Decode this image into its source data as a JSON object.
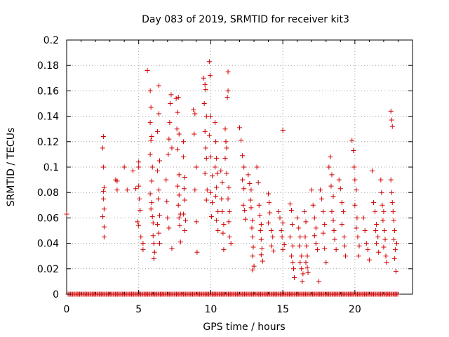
{
  "chart_data": {
    "type": "scatter",
    "title": "Day 083 of 2019, SRMTID for receiver kit3",
    "xlabel": "GPS time / hours",
    "ylabel": "SRMTID / TECUs",
    "xlim": [
      0,
      24
    ],
    "ylim": [
      0,
      0.2
    ],
    "x_ticks": [
      0,
      5,
      10,
      15,
      20
    ],
    "y_ticks": [
      0,
      0.02,
      0.04,
      0.06,
      0.08,
      0.1,
      0.12,
      0.14,
      0.16,
      0.18,
      0.2
    ],
    "x_tick_labels": [
      "0",
      "5",
      "10",
      "15",
      "20"
    ],
    "y_tick_labels": [
      "0",
      "0.02",
      "0.04",
      "0.06",
      "0.08",
      "0.1",
      "0.12",
      "0.14",
      "0.16",
      "0.18",
      "0.2"
    ],
    "grid": true,
    "marker": "+",
    "color": "#d00000",
    "series": [
      {
        "name": "SRMTID",
        "points": [
          [
            0.0,
            0.063
          ],
          [
            2.55,
            0.124
          ],
          [
            2.5,
            0.115
          ],
          [
            2.55,
            0.1
          ],
          [
            2.6,
            0.084
          ],
          [
            2.55,
            0.081
          ],
          [
            2.55,
            0.075
          ],
          [
            2.6,
            0.067
          ],
          [
            2.5,
            0.061
          ],
          [
            2.6,
            0.053
          ],
          [
            2.6,
            0.045
          ],
          [
            3.4,
            0.09
          ],
          [
            3.5,
            0.082
          ],
          [
            3.5,
            0.089
          ],
          [
            4.0,
            0.1
          ],
          [
            4.2,
            0.082
          ],
          [
            4.6,
            0.097
          ],
          [
            4.8,
            0.083
          ],
          [
            5.0,
            0.1
          ],
          [
            5.0,
            0.104
          ],
          [
            5.0,
            0.085
          ],
          [
            4.9,
            0.057
          ],
          [
            5.05,
            0.075
          ],
          [
            5.1,
            0.066
          ],
          [
            5.0,
            0.054
          ],
          [
            5.15,
            0.045
          ],
          [
            5.3,
            0.04
          ],
          [
            5.3,
            0.035
          ],
          [
            5.6,
            0.176
          ],
          [
            5.8,
            0.16
          ],
          [
            5.85,
            0.147
          ],
          [
            5.8,
            0.135
          ],
          [
            5.9,
            0.124
          ],
          [
            5.85,
            0.121
          ],
          [
            5.8,
            0.11
          ],
          [
            5.95,
            0.1
          ],
          [
            5.9,
            0.089
          ],
          [
            5.8,
            0.079
          ],
          [
            5.9,
            0.072
          ],
          [
            5.85,
            0.067
          ],
          [
            5.95,
            0.061
          ],
          [
            6.0,
            0.056
          ],
          [
            6.0,
            0.046
          ],
          [
            6.05,
            0.04
          ],
          [
            6.1,
            0.033
          ],
          [
            6.05,
            0.028
          ],
          [
            6.3,
            0.128
          ],
          [
            6.4,
            0.142
          ],
          [
            6.4,
            0.164
          ],
          [
            6.45,
            0.105
          ],
          [
            6.3,
            0.097
          ],
          [
            6.4,
            0.082
          ],
          [
            6.35,
            0.075
          ],
          [
            6.45,
            0.062
          ],
          [
            6.3,
            0.055
          ],
          [
            6.4,
            0.048
          ],
          [
            6.45,
            0.04
          ],
          [
            6.9,
            0.09
          ],
          [
            6.95,
            0.073
          ],
          [
            7.0,
            0.06
          ],
          [
            7.05,
            0.11
          ],
          [
            7.1,
            0.122
          ],
          [
            7.2,
            0.15
          ],
          [
            7.25,
            0.157
          ],
          [
            7.15,
            0.135
          ],
          [
            7.3,
            0.115
          ],
          [
            7.1,
            0.052
          ],
          [
            7.3,
            0.036
          ],
          [
            7.6,
            0.154
          ],
          [
            7.7,
            0.143
          ],
          [
            7.75,
            0.155
          ],
          [
            7.65,
            0.13
          ],
          [
            7.8,
            0.126
          ],
          [
            7.7,
            0.114
          ],
          [
            7.8,
            0.094
          ],
          [
            7.7,
            0.085
          ],
          [
            7.8,
            0.078
          ],
          [
            7.75,
            0.07
          ],
          [
            7.9,
            0.063
          ],
          [
            7.8,
            0.06
          ],
          [
            7.85,
            0.054
          ],
          [
            7.9,
            0.041
          ],
          [
            8.1,
            0.12
          ],
          [
            8.1,
            0.108
          ],
          [
            8.2,
            0.092
          ],
          [
            8.15,
            0.083
          ],
          [
            8.2,
            0.074
          ],
          [
            8.1,
            0.063
          ],
          [
            8.25,
            0.058
          ],
          [
            8.2,
            0.05
          ],
          [
            8.8,
            0.145
          ],
          [
            8.9,
            0.142
          ],
          [
            9.0,
            0.1
          ],
          [
            8.85,
            0.126
          ],
          [
            8.9,
            0.082
          ],
          [
            9.0,
            0.057
          ],
          [
            9.05,
            0.033
          ],
          [
            9.5,
            0.17
          ],
          [
            9.6,
            0.165
          ],
          [
            9.65,
            0.161
          ],
          [
            9.55,
            0.15
          ],
          [
            9.7,
            0.14
          ],
          [
            9.6,
            0.128
          ],
          [
            9.65,
            0.115
          ],
          [
            9.7,
            0.107
          ],
          [
            9.6,
            0.095
          ],
          [
            9.75,
            0.082
          ],
          [
            9.7,
            0.074
          ],
          [
            9.9,
            0.183
          ],
          [
            9.95,
            0.172
          ],
          [
            10.0,
            0.14
          ],
          [
            9.9,
            0.125
          ],
          [
            10.0,
            0.108
          ],
          [
            10.1,
            0.093
          ],
          [
            10.0,
            0.08
          ],
          [
            10.1,
            0.072
          ],
          [
            10.05,
            0.061
          ],
          [
            10.3,
            0.135
          ],
          [
            10.35,
            0.12
          ],
          [
            10.4,
            0.107
          ],
          [
            10.3,
            0.1
          ],
          [
            10.45,
            0.095
          ],
          [
            10.4,
            0.084
          ],
          [
            10.35,
            0.077
          ],
          [
            10.5,
            0.065
          ],
          [
            10.4,
            0.058
          ],
          [
            10.5,
            0.05
          ],
          [
            10.7,
            0.097
          ],
          [
            10.8,
            0.088
          ],
          [
            10.75,
            0.075
          ],
          [
            10.8,
            0.065
          ],
          [
            10.9,
            0.055
          ],
          [
            10.85,
            0.048
          ],
          [
            10.9,
            0.035
          ],
          [
            11.0,
            0.13
          ],
          [
            11.05,
            0.12
          ],
          [
            11.1,
            0.115
          ],
          [
            11.0,
            0.107
          ],
          [
            11.1,
            0.095
          ],
          [
            11.2,
            0.175
          ],
          [
            11.2,
            0.16
          ],
          [
            11.15,
            0.155
          ],
          [
            11.25,
            0.084
          ],
          [
            11.2,
            0.075
          ],
          [
            11.3,
            0.065
          ],
          [
            11.25,
            0.057
          ],
          [
            11.3,
            0.045
          ],
          [
            11.4,
            0.04
          ],
          [
            12.0,
            0.131
          ],
          [
            12.1,
            0.121
          ],
          [
            12.2,
            0.109
          ],
          [
            12.3,
            0.1
          ],
          [
            12.2,
            0.09
          ],
          [
            12.3,
            0.083
          ],
          [
            12.25,
            0.07
          ],
          [
            12.35,
            0.066
          ],
          [
            12.4,
            0.059
          ],
          [
            12.6,
            0.094
          ],
          [
            12.7,
            0.087
          ],
          [
            12.8,
            0.082
          ],
          [
            12.75,
            0.074
          ],
          [
            12.8,
            0.068
          ],
          [
            12.9,
            0.058
          ],
          [
            12.85,
            0.052
          ],
          [
            12.9,
            0.045
          ],
          [
            12.95,
            0.037
          ],
          [
            12.9,
            0.03
          ],
          [
            13.0,
            0.022
          ],
          [
            12.9,
            0.019
          ],
          [
            13.2,
            0.1
          ],
          [
            13.3,
            0.088
          ],
          [
            13.35,
            0.07
          ],
          [
            13.4,
            0.062
          ],
          [
            13.5,
            0.055
          ],
          [
            13.45,
            0.05
          ],
          [
            13.5,
            0.043
          ],
          [
            13.55,
            0.036
          ],
          [
            13.5,
            0.031
          ],
          [
            13.6,
            0.026
          ],
          [
            14.0,
            0.079
          ],
          [
            14.05,
            0.072
          ],
          [
            14.1,
            0.064
          ],
          [
            14.0,
            0.056
          ],
          [
            14.2,
            0.05
          ],
          [
            14.3,
            0.045
          ],
          [
            14.2,
            0.038
          ],
          [
            14.35,
            0.034
          ],
          [
            14.7,
            0.065
          ],
          [
            14.8,
            0.06
          ],
          [
            14.9,
            0.05
          ],
          [
            14.95,
            0.045
          ],
          [
            15.0,
            0.129
          ],
          [
            15.0,
            0.056
          ],
          [
            15.1,
            0.039
          ],
          [
            15.0,
            0.035
          ],
          [
            15.5,
            0.071
          ],
          [
            15.6,
            0.066
          ],
          [
            15.65,
            0.055
          ],
          [
            15.5,
            0.045
          ],
          [
            15.7,
            0.038
          ],
          [
            15.6,
            0.03
          ],
          [
            15.7,
            0.025
          ],
          [
            15.75,
            0.02
          ],
          [
            15.8,
            0.013
          ],
          [
            16.0,
            0.06
          ],
          [
            16.1,
            0.052
          ],
          [
            16.2,
            0.045
          ],
          [
            16.15,
            0.038
          ],
          [
            16.3,
            0.03
          ],
          [
            16.2,
            0.025
          ],
          [
            16.3,
            0.02
          ],
          [
            16.4,
            0.016
          ],
          [
            16.35,
            0.01
          ],
          [
            16.5,
            0.065
          ],
          [
            16.6,
            0.057
          ],
          [
            16.55,
            0.045
          ],
          [
            16.65,
            0.038
          ],
          [
            16.7,
            0.03
          ],
          [
            16.6,
            0.025
          ],
          [
            16.7,
            0.021
          ],
          [
            16.75,
            0.017
          ],
          [
            17.0,
            0.082
          ],
          [
            17.1,
            0.07
          ],
          [
            17.2,
            0.06
          ],
          [
            17.3,
            0.052
          ],
          [
            17.2,
            0.046
          ],
          [
            17.3,
            0.04
          ],
          [
            17.4,
            0.035
          ],
          [
            17.5,
            0.01
          ],
          [
            17.6,
            0.082
          ],
          [
            17.7,
            0.075
          ],
          [
            17.8,
            0.065
          ],
          [
            17.9,
            0.055
          ],
          [
            17.8,
            0.048
          ],
          [
            17.9,
            0.036
          ],
          [
            18.0,
            0.025
          ],
          [
            18.2,
            0.1
          ],
          [
            18.3,
            0.108
          ],
          [
            18.4,
            0.094
          ],
          [
            18.35,
            0.085
          ],
          [
            18.5,
            0.077
          ],
          [
            18.4,
            0.065
          ],
          [
            18.5,
            0.058
          ],
          [
            18.55,
            0.05
          ],
          [
            18.6,
            0.043
          ],
          [
            18.7,
            0.035
          ],
          [
            18.9,
            0.09
          ],
          [
            19.0,
            0.083
          ],
          [
            19.1,
            0.072
          ],
          [
            19.2,
            0.065
          ],
          [
            19.1,
            0.055
          ],
          [
            19.25,
            0.045
          ],
          [
            19.3,
            0.038
          ],
          [
            19.35,
            0.03
          ],
          [
            19.8,
            0.121
          ],
          [
            19.9,
            0.113
          ],
          [
            19.95,
            0.1
          ],
          [
            20.0,
            0.09
          ],
          [
            20.1,
            0.082
          ],
          [
            20.0,
            0.07
          ],
          [
            20.15,
            0.06
          ],
          [
            20.1,
            0.052
          ],
          [
            20.2,
            0.045
          ],
          [
            20.3,
            0.038
          ],
          [
            20.25,
            0.03
          ],
          [
            20.6,
            0.06
          ],
          [
            20.7,
            0.05
          ],
          [
            20.8,
            0.04
          ],
          [
            20.9,
            0.035
          ],
          [
            21.0,
            0.027
          ],
          [
            21.2,
            0.097
          ],
          [
            21.3,
            0.072
          ],
          [
            21.4,
            0.065
          ],
          [
            21.5,
            0.055
          ],
          [
            21.45,
            0.05
          ],
          [
            21.6,
            0.045
          ],
          [
            21.5,
            0.04
          ],
          [
            21.65,
            0.033
          ],
          [
            21.8,
            0.09
          ],
          [
            21.85,
            0.08
          ],
          [
            21.9,
            0.07
          ],
          [
            22.0,
            0.065
          ],
          [
            21.95,
            0.058
          ],
          [
            22.05,
            0.05
          ],
          [
            22.1,
            0.043
          ],
          [
            22.0,
            0.037
          ],
          [
            22.15,
            0.03
          ],
          [
            22.2,
            0.025
          ],
          [
            22.5,
            0.144
          ],
          [
            22.55,
            0.137
          ],
          [
            22.6,
            0.132
          ],
          [
            22.5,
            0.09
          ],
          [
            22.55,
            0.08
          ],
          [
            22.6,
            0.072
          ],
          [
            22.65,
            0.065
          ],
          [
            22.7,
            0.058
          ],
          [
            22.75,
            0.05
          ],
          [
            22.7,
            0.043
          ],
          [
            22.8,
            0.035
          ],
          [
            22.75,
            0.028
          ],
          [
            22.85,
            0.018
          ],
          [
            22.9,
            0.04
          ]
        ]
      }
    ],
    "zero_band": {
      "y": 0,
      "x_start": 0.1,
      "x_end": 23.0
    }
  }
}
